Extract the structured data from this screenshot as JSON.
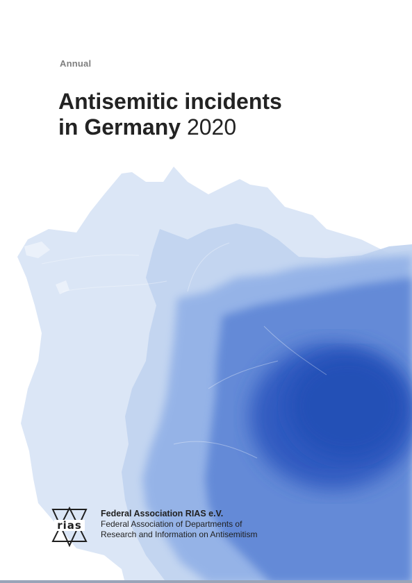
{
  "kicker": "Annual",
  "title": {
    "line1": "Antisemitic incidents",
    "line2_bold": "in Germany",
    "year": "2020"
  },
  "organization": {
    "logo_text": "rias",
    "name": "Federal Association RIAS e.V.",
    "line1": "Federal Association of Departments of",
    "line2": "Research and Information on Antisemitism"
  },
  "colors": {
    "map_lightest": "#dbe6f6",
    "map_light": "#b3c9ec",
    "map_mid": "#7ea2e0",
    "map_strong": "#4f78d0",
    "map_dark": "#2a55bb"
  },
  "icons": [
    "rias-triangle-logo-icon"
  ]
}
